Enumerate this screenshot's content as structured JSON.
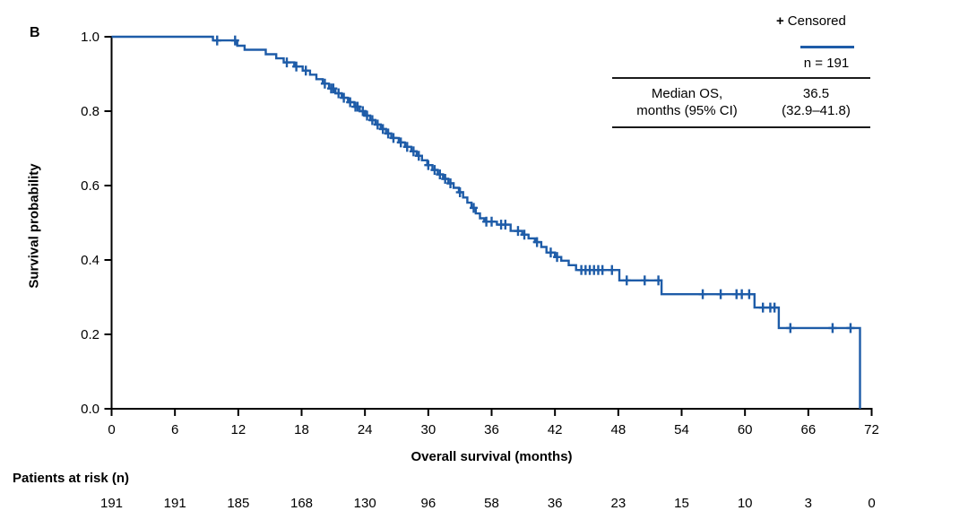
{
  "panel_label": "B",
  "colors": {
    "curve": "#1e5ca8",
    "axis": "#000000",
    "text": "#000000"
  },
  "legend": {
    "censored_symbol": "+",
    "censored_label": "Censored",
    "n_label": "n = 191"
  },
  "stats_table": {
    "header_line1": "Median OS,",
    "header_line2": "months (95% CI)",
    "value_line1": "36.5",
    "value_line2": "(32.9–41.8)"
  },
  "axes": {
    "x_label": "Overall survival (months)",
    "y_label": "Survival probability",
    "y_ticks": [
      "0.0",
      "0.2",
      "0.4",
      "0.6",
      "0.8",
      "1.0"
    ]
  },
  "risk_table": {
    "label": "Patients at risk (n)"
  },
  "chart_data": {
    "type": "line",
    "subtype": "kaplan-meier-step",
    "title": "",
    "xlabel": "Overall survival (months)",
    "ylabel": "Survival probability",
    "xlim": [
      0,
      72
    ],
    "ylim": [
      0.0,
      1.0
    ],
    "x_tick_interval": 6,
    "grid": false,
    "legend_position": "top-right",
    "series": [
      {
        "name": "n = 191",
        "color": "#1e5ca8",
        "median_os_months": 36.5,
        "ci_95": [
          32.9,
          41.8
        ],
        "steps": [
          [
            0,
            1.0
          ],
          [
            9.6,
            0.99
          ],
          [
            11.9,
            0.976
          ],
          [
            12.6,
            0.965
          ],
          [
            14.6,
            0.953
          ],
          [
            15.6,
            0.942
          ],
          [
            16.3,
            0.931
          ],
          [
            17.3,
            0.92
          ],
          [
            18.1,
            0.909
          ],
          [
            18.8,
            0.898
          ],
          [
            19.4,
            0.886
          ],
          [
            20.0,
            0.874
          ],
          [
            20.6,
            0.861
          ],
          [
            21.2,
            0.848
          ],
          [
            21.8,
            0.836
          ],
          [
            22.4,
            0.824
          ],
          [
            23.0,
            0.812
          ],
          [
            23.5,
            0.8
          ],
          [
            24.0,
            0.788
          ],
          [
            24.5,
            0.776
          ],
          [
            25.0,
            0.764
          ],
          [
            25.5,
            0.752
          ],
          [
            26.0,
            0.74
          ],
          [
            26.5,
            0.728
          ],
          [
            27.2,
            0.716
          ],
          [
            27.8,
            0.704
          ],
          [
            28.4,
            0.692
          ],
          [
            28.9,
            0.68
          ],
          [
            29.4,
            0.668
          ],
          [
            29.9,
            0.655
          ],
          [
            30.4,
            0.642
          ],
          [
            30.9,
            0.63
          ],
          [
            31.4,
            0.618
          ],
          [
            31.9,
            0.606
          ],
          [
            32.4,
            0.594
          ],
          [
            32.9,
            0.582
          ],
          [
            33.3,
            0.568
          ],
          [
            33.7,
            0.554
          ],
          [
            34.1,
            0.54
          ],
          [
            34.5,
            0.525
          ],
          [
            34.9,
            0.512
          ],
          [
            35.3,
            0.503
          ],
          [
            36.5,
            0.495
          ],
          [
            37.8,
            0.478
          ],
          [
            38.9,
            0.468
          ],
          [
            39.5,
            0.458
          ],
          [
            40.1,
            0.448
          ],
          [
            40.7,
            0.435
          ],
          [
            41.2,
            0.42
          ],
          [
            42.0,
            0.408
          ],
          [
            42.6,
            0.398
          ],
          [
            43.3,
            0.386
          ],
          [
            44.0,
            0.373
          ],
          [
            48.1,
            0.345
          ],
          [
            52.1,
            0.308
          ],
          [
            60.9,
            0.272
          ],
          [
            63.2,
            0.217
          ],
          [
            70.9,
            0.0
          ]
        ],
        "censors": [
          [
            10.0,
            0.99
          ],
          [
            11.7,
            0.99
          ],
          [
            16.6,
            0.931
          ],
          [
            17.5,
            0.92
          ],
          [
            18.4,
            0.909
          ],
          [
            20.2,
            0.874
          ],
          [
            20.8,
            0.861
          ],
          [
            21.0,
            0.861
          ],
          [
            21.5,
            0.848
          ],
          [
            22.0,
            0.836
          ],
          [
            22.6,
            0.824
          ],
          [
            23.1,
            0.812
          ],
          [
            23.3,
            0.812
          ],
          [
            23.8,
            0.8
          ],
          [
            24.2,
            0.788
          ],
          [
            24.7,
            0.776
          ],
          [
            25.2,
            0.764
          ],
          [
            25.7,
            0.752
          ],
          [
            26.2,
            0.74
          ],
          [
            26.7,
            0.728
          ],
          [
            27.4,
            0.716
          ],
          [
            28.0,
            0.704
          ],
          [
            28.6,
            0.692
          ],
          [
            29.1,
            0.68
          ],
          [
            30.0,
            0.655
          ],
          [
            30.6,
            0.642
          ],
          [
            31.1,
            0.63
          ],
          [
            31.6,
            0.618
          ],
          [
            32.1,
            0.606
          ],
          [
            33.0,
            0.582
          ],
          [
            34.3,
            0.54
          ],
          [
            35.5,
            0.503
          ],
          [
            36.0,
            0.503
          ],
          [
            36.9,
            0.495
          ],
          [
            37.3,
            0.495
          ],
          [
            38.5,
            0.478
          ],
          [
            39.1,
            0.468
          ],
          [
            40.3,
            0.448
          ],
          [
            41.6,
            0.42
          ],
          [
            42.2,
            0.408
          ],
          [
            44.5,
            0.373
          ],
          [
            44.9,
            0.373
          ],
          [
            45.3,
            0.373
          ],
          [
            45.7,
            0.373
          ],
          [
            46.1,
            0.373
          ],
          [
            46.5,
            0.373
          ],
          [
            47.4,
            0.373
          ],
          [
            48.8,
            0.345
          ],
          [
            50.5,
            0.345
          ],
          [
            51.8,
            0.345
          ],
          [
            56.0,
            0.308
          ],
          [
            57.7,
            0.308
          ],
          [
            59.2,
            0.308
          ],
          [
            59.7,
            0.308
          ],
          [
            60.4,
            0.308
          ],
          [
            61.7,
            0.272
          ],
          [
            62.4,
            0.272
          ],
          [
            62.8,
            0.272
          ],
          [
            64.3,
            0.217
          ],
          [
            68.3,
            0.217
          ],
          [
            70.0,
            0.217
          ]
        ]
      }
    ],
    "at_risk": {
      "label": "Patients at risk (n)",
      "times": [
        0,
        6,
        12,
        18,
        24,
        30,
        36,
        42,
        48,
        54,
        60,
        66,
        72
      ],
      "values": [
        191,
        191,
        185,
        168,
        130,
        96,
        58,
        36,
        23,
        15,
        10,
        3,
        0
      ]
    }
  }
}
